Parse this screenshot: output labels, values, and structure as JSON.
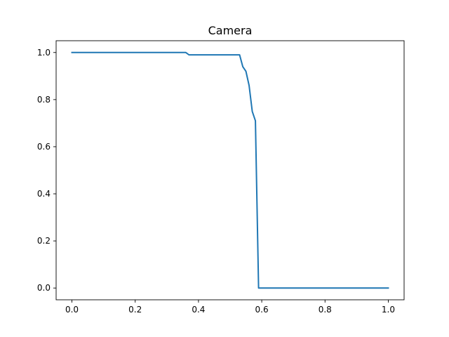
{
  "chart_data": {
    "type": "line",
    "title": "Camera",
    "xlabel": "",
    "ylabel": "",
    "xlim": [
      -0.05,
      1.05
    ],
    "ylim": [
      -0.05,
      1.05
    ],
    "xticks": [
      0.0,
      0.2,
      0.4,
      0.6,
      0.8,
      1.0
    ],
    "xtick_labels": [
      "0.0",
      "0.2",
      "0.4",
      "0.6",
      "0.8",
      "1.0"
    ],
    "yticks": [
      0.0,
      0.2,
      0.4,
      0.6,
      0.8,
      1.0
    ],
    "ytick_labels": [
      "0.0",
      "0.2",
      "0.4",
      "0.6",
      "0.8",
      "1.0"
    ],
    "grid": false,
    "legend": "none",
    "series": [
      {
        "color": "#1f77b4",
        "x": [
          0.0,
          0.36,
          0.37,
          0.53,
          0.54,
          0.55,
          0.56,
          0.57,
          0.58,
          0.59,
          1.0
        ],
        "y": [
          1.0,
          1.0,
          0.99,
          0.99,
          0.94,
          0.92,
          0.86,
          0.75,
          0.71,
          0.0,
          0.0
        ]
      }
    ]
  }
}
